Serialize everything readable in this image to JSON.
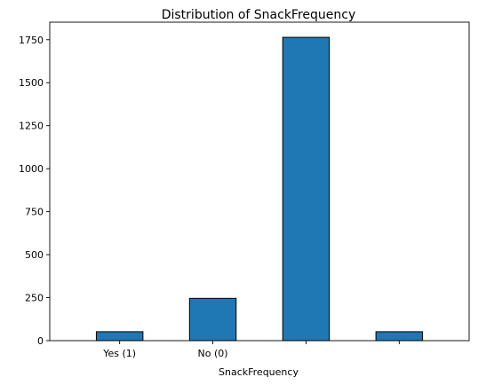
{
  "chart_data": {
    "type": "bar",
    "title": "Distribution of SnackFrequency",
    "xlabel": "SnackFrequency",
    "ylabel": "",
    "categories": [
      "Yes (1)",
      "No (0)",
      "",
      ""
    ],
    "values": [
      52,
      246,
      1764,
      52
    ],
    "ylim": [
      0,
      1852
    ],
    "yticks": [
      0,
      250,
      500,
      750,
      1000,
      1250,
      1500,
      1750
    ],
    "grid": false,
    "legend": "none",
    "bar_color": "#1f77b4",
    "bar_edge_color": "#000000"
  }
}
